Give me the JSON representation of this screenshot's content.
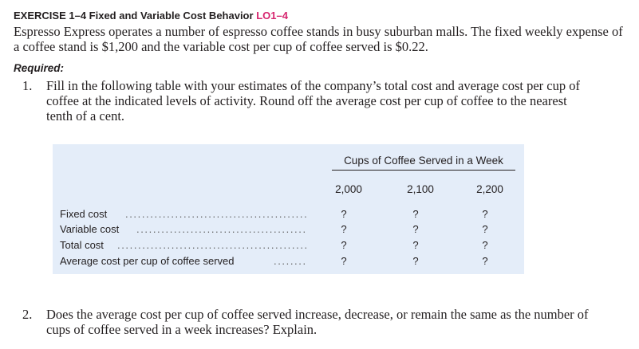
{
  "exercise": {
    "heading": "EXERCISE 1–4 Fixed and Variable Cost Behavior",
    "learning_objective": "LO1–4",
    "intro": "Espresso Express operates a number of espresso coffee stands in busy suburban malls. The fixed weekly expense of a coffee stand is $1,200 and the variable cost per cup of coffee served is $0.22.",
    "required_label": "Required:"
  },
  "items": [
    {
      "number": "1.",
      "text": "Fill in the following table with your estimates of the company’s total cost and average cost per cup of coffee at the indicated levels of activity. Round off the average cost per cup of coffee to the nearest tenth of a cent."
    },
    {
      "number": "2.",
      "text": "Does the average cost per cup of coffee served increase, decrease, or remain the same as the number of cups of coffee served in a week increases? Explain."
    }
  ],
  "table": {
    "header_span": "Cups of Coffee Served in a Week",
    "columns": [
      "2,000",
      "2,100",
      "2,200"
    ],
    "rows": [
      {
        "label": "Fixed cost",
        "values": [
          "?",
          "?",
          "?"
        ]
      },
      {
        "label": "Variable cost",
        "values": [
          "?",
          "?",
          "?"
        ]
      },
      {
        "label": "Total cost",
        "values": [
          "?",
          "?",
          "?"
        ]
      },
      {
        "label": "Average cost per cup of coffee served",
        "values": [
          "?",
          "?",
          "?"
        ]
      }
    ]
  }
}
